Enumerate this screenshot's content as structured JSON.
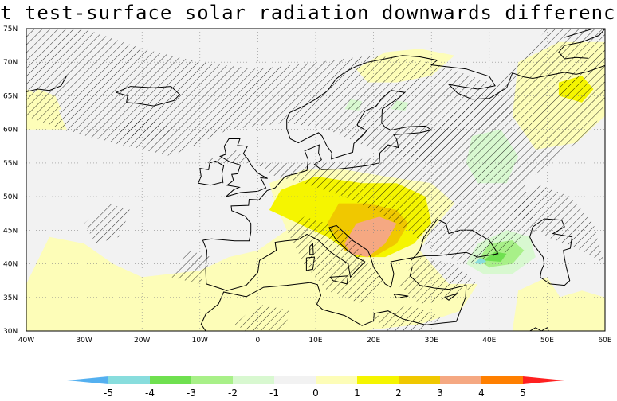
{
  "title": "t test-surface solar radiation downwards differences",
  "map": {
    "lat_labels": [
      "30N",
      "35N",
      "40N",
      "45N",
      "50N",
      "55N",
      "60N",
      "65N",
      "70N",
      "75N"
    ],
    "lon_labels": [
      "40W",
      "30W",
      "20W",
      "10W",
      "0",
      "10E",
      "20E",
      "30E",
      "40E",
      "50E",
      "60E"
    ],
    "lon_range": [
      -40,
      60
    ],
    "lat_range": [
      30,
      75
    ],
    "hatching": "significant areas hatched",
    "colors": {
      "neutral": "#f2f2f2",
      "pos_1": "#fdfdb8",
      "pos_2": "#f5f500",
      "pos_3": "#f0c800",
      "pos_4": "#f5a882",
      "pos_5": "#ff7f00",
      "neg_1": "#d8f8d0",
      "neg_2": "#a8f088",
      "neg_3": "#6fe050",
      "neg_4": "#88dddd",
      "neg_5": "#54b0f0"
    }
  },
  "colorbar": {
    "ticks": [
      "-5",
      "-4",
      "-3",
      "-2",
      "-1",
      "0",
      "1",
      "2",
      "3",
      "4",
      "5"
    ],
    "colors": [
      "#54b0f0",
      "#88dddd",
      "#6fe050",
      "#a8f088",
      "#d8f8d0",
      "#f2f2f2",
      "#fdfdb8",
      "#f5f500",
      "#f0c800",
      "#f5a882",
      "#ff7f00",
      "#ff2020"
    ]
  }
}
